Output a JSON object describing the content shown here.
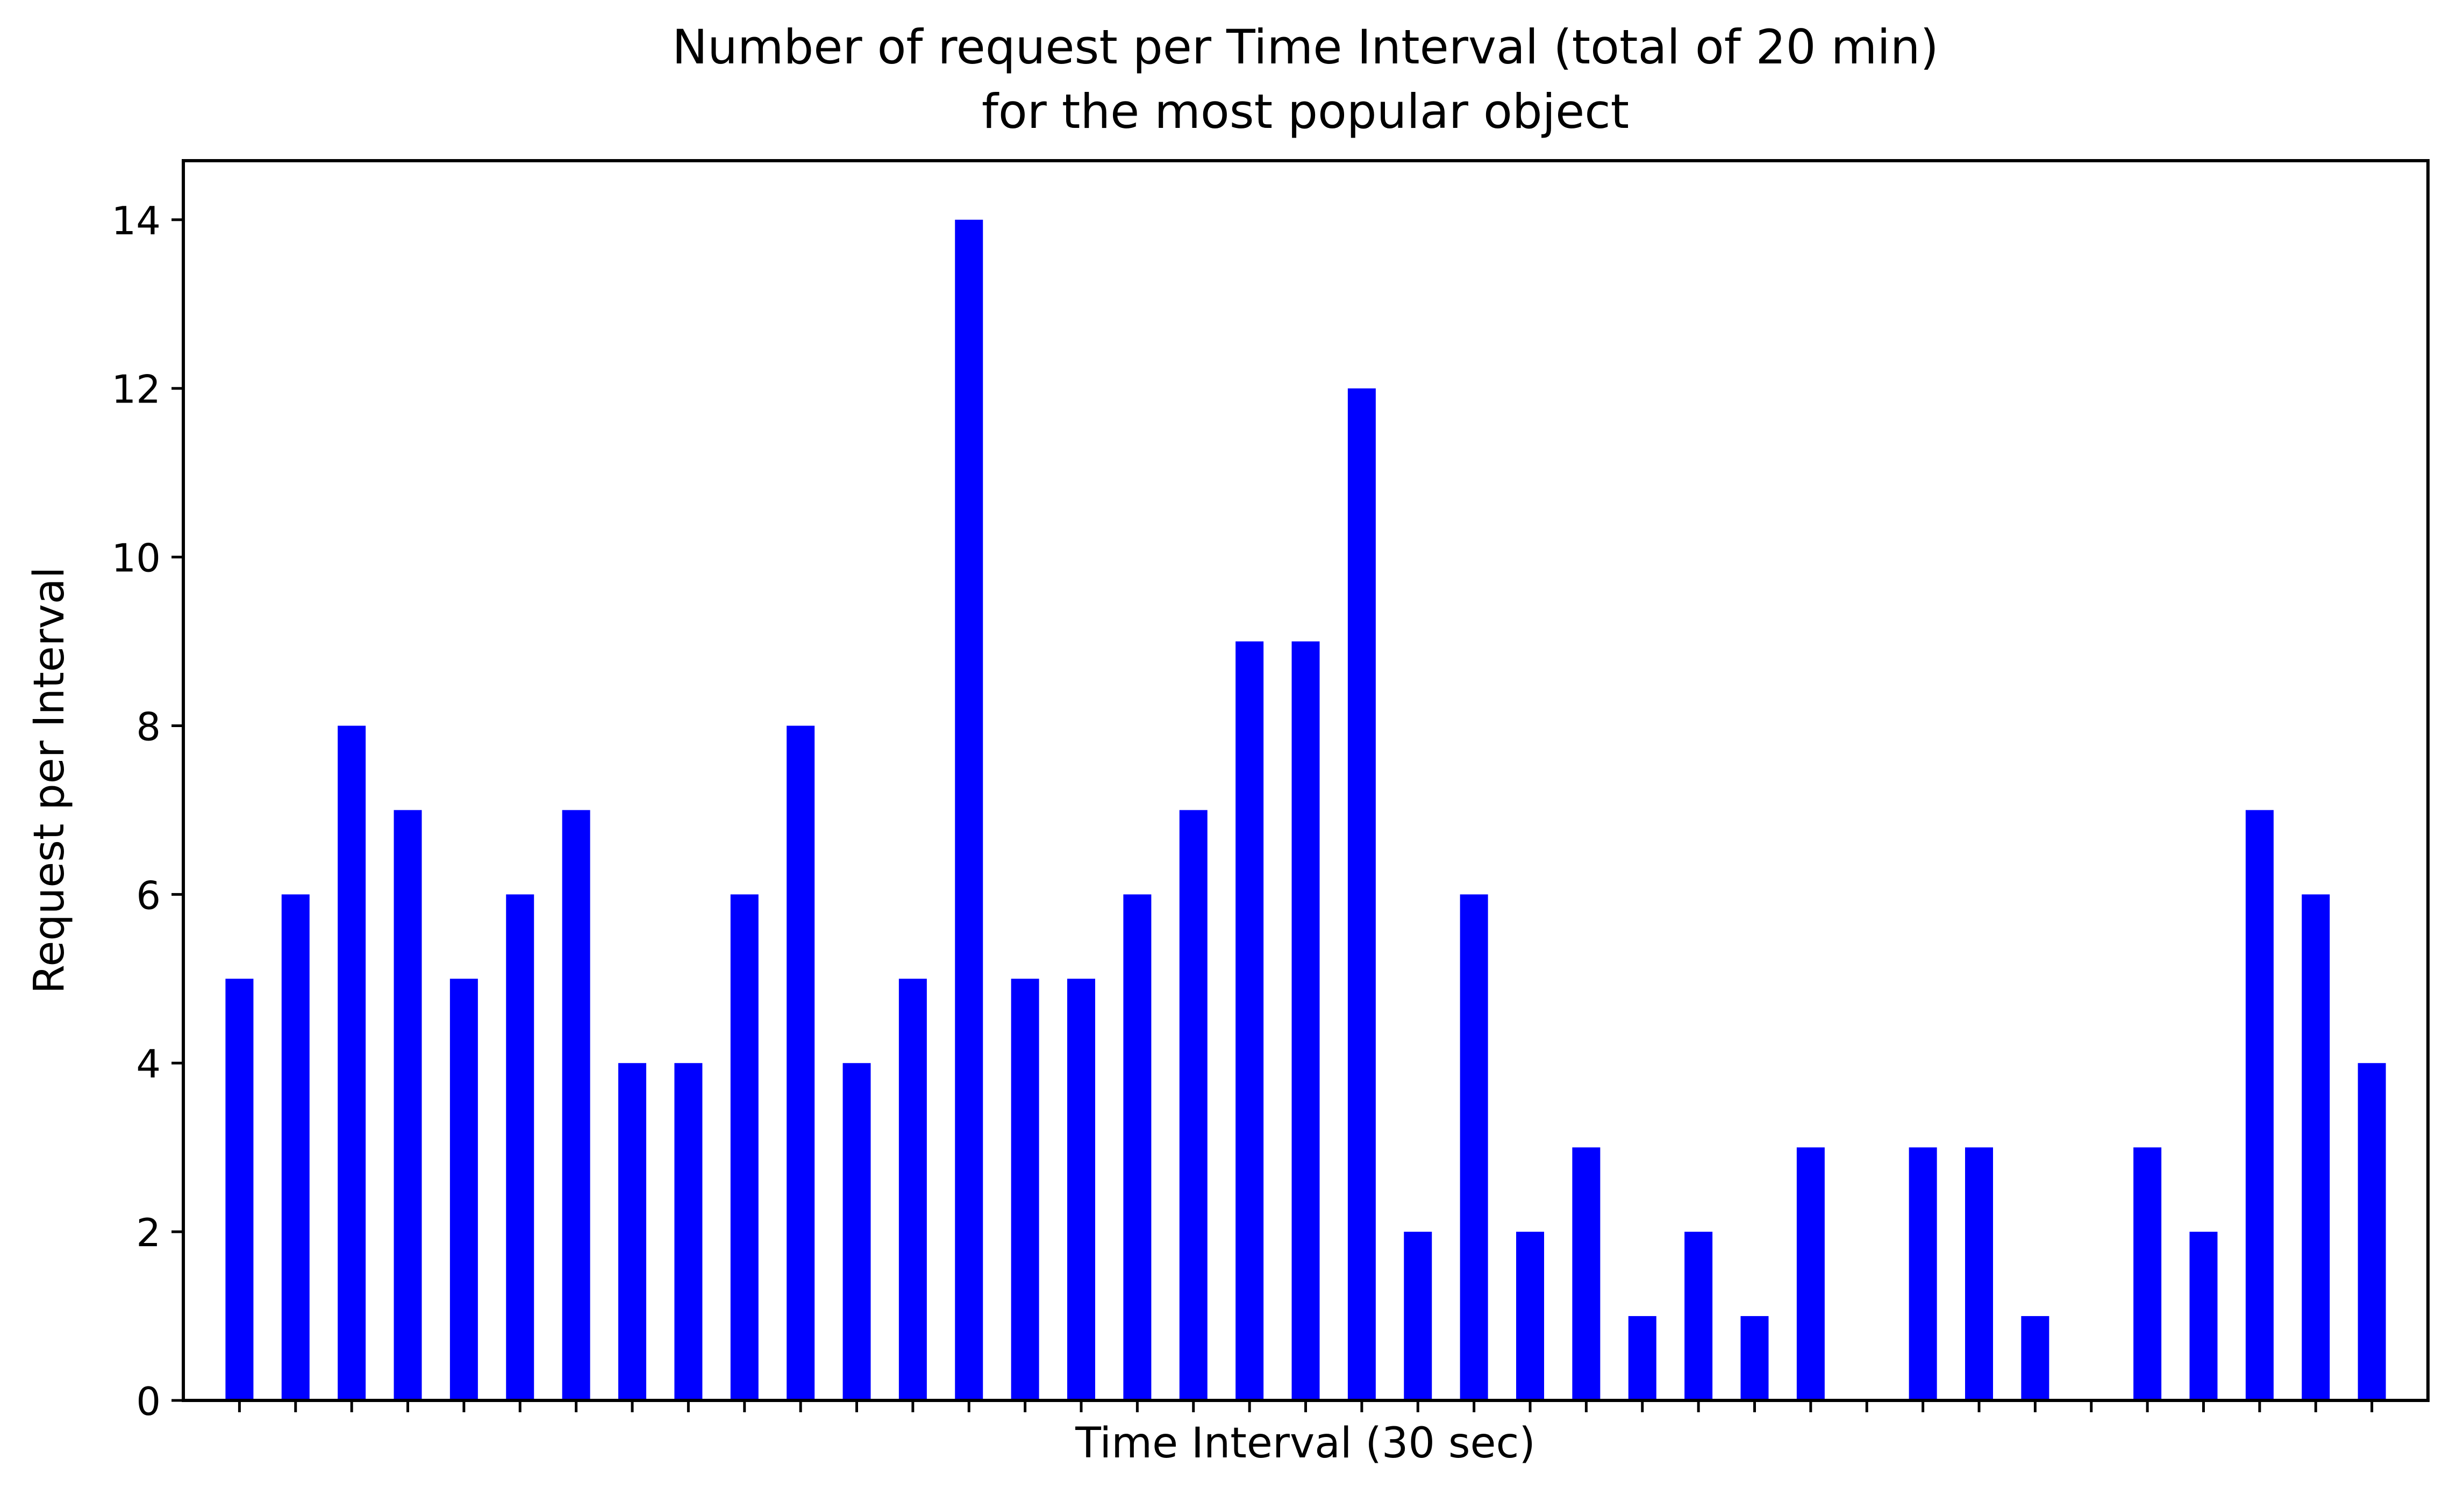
{
  "chart_data": {
    "type": "bar",
    "title_lines": [
      "Number of request per Time Interval (total of 20 min)",
      "for the most popular object"
    ],
    "xlabel": "Time Interval (30 sec)",
    "ylabel": "Request per Interval",
    "ylim": [
      0,
      14.7
    ],
    "yticks": [
      0,
      2,
      4,
      6,
      8,
      10,
      12,
      14
    ],
    "x_tick_labels_shown": false,
    "grid": false,
    "legend": "none",
    "bar_color": "#0000ff",
    "series": [
      {
        "values": [
          5,
          6,
          8,
          7,
          5,
          6,
          7,
          4,
          4,
          6,
          8,
          4,
          5,
          14,
          5,
          5,
          6,
          7,
          9,
          9,
          12,
          2,
          6,
          2,
          3,
          1,
          2,
          1,
          3,
          0,
          3,
          3,
          1,
          0,
          3,
          2,
          7,
          6,
          4
        ]
      }
    ]
  }
}
